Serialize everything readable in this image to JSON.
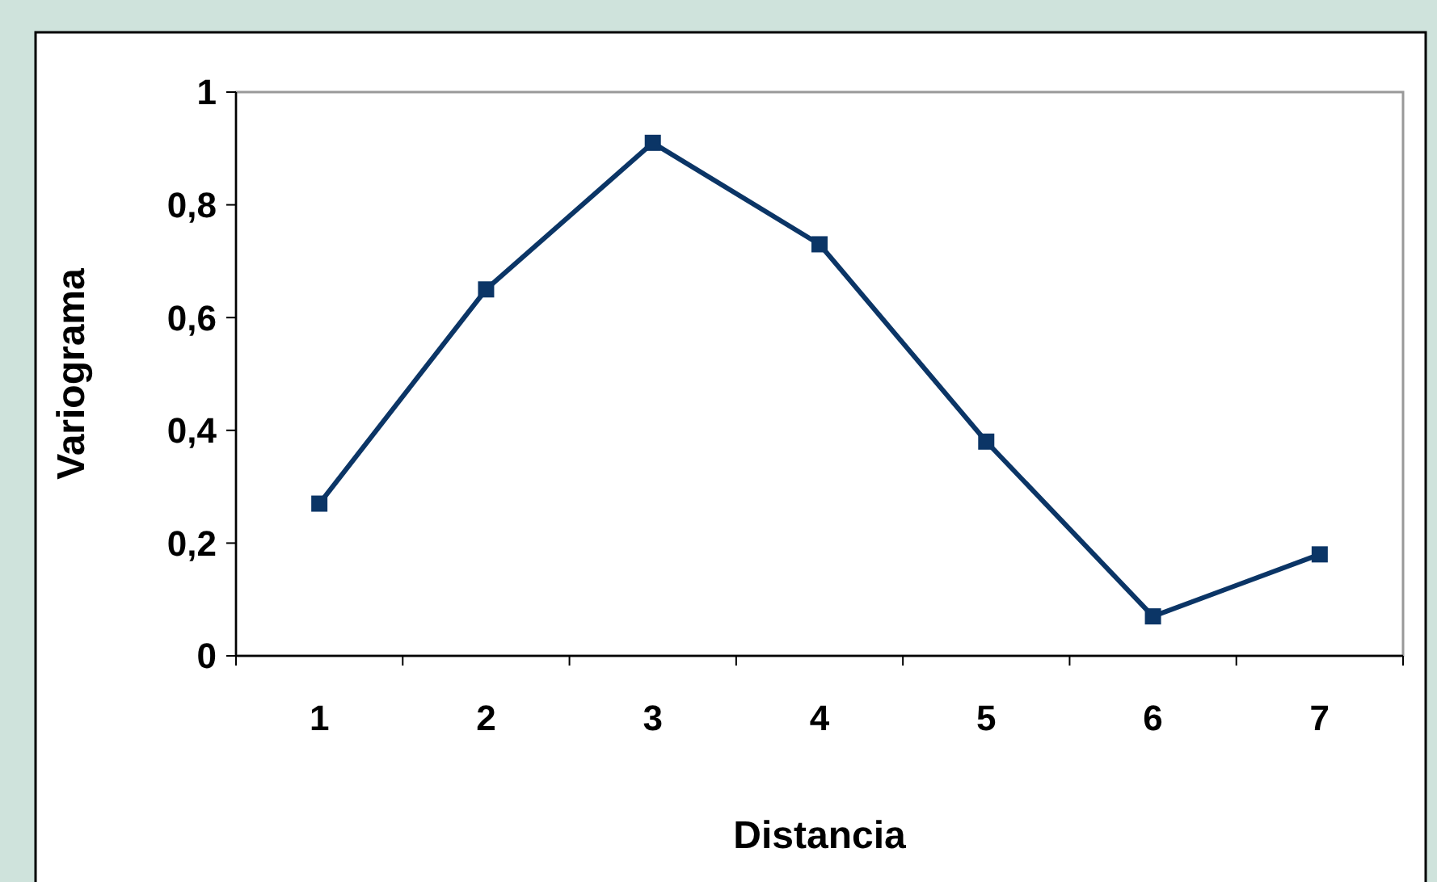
{
  "chart_data": {
    "type": "line",
    "xlabel": "Distancia",
    "ylabel": "Variograma",
    "categories": [
      "1",
      "2",
      "3",
      "4",
      "5",
      "6",
      "7"
    ],
    "series": [
      {
        "color": "#0b3566",
        "values": [
          0.27,
          0.65,
          0.91,
          0.73,
          0.38,
          0.07,
          0.18
        ]
      }
    ],
    "ylim": [
      0,
      1
    ],
    "yticks": [
      0,
      {
        "value": 0.2,
        "label": "0,2"
      },
      {
        "value": 0.4,
        "label": "0,4"
      },
      {
        "value": 0.6,
        "label": "0,6"
      },
      {
        "value": 0.8,
        "label": "0,8"
      },
      1
    ],
    "grid": false,
    "marker": "square",
    "line_style": "solid"
  }
}
